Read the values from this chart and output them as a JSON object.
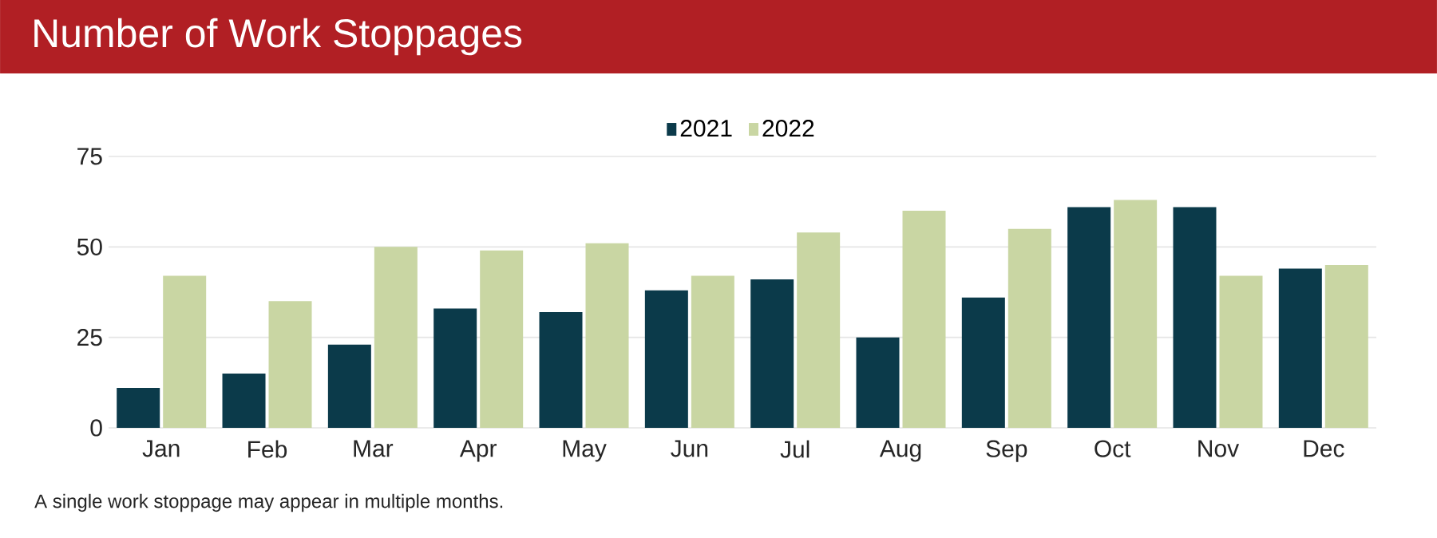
{
  "chart_data": {
    "type": "bar",
    "title": "Number of Work Stoppages",
    "categories": [
      "Jan",
      "Feb",
      "Mar",
      "Apr",
      "May",
      "Jun",
      "Jul",
      "Aug",
      "Sep",
      "Oct",
      "Nov",
      "Dec"
    ],
    "series": [
      {
        "name": "2021",
        "color": "#0b3a4a",
        "values": [
          11,
          15,
          23,
          33,
          32,
          38,
          41,
          25,
          36,
          61,
          61,
          44
        ]
      },
      {
        "name": "2022",
        "color": "#c9d6a3",
        "values": [
          42,
          35,
          50,
          49,
          51,
          42,
          54,
          60,
          55,
          63,
          42,
          45
        ]
      }
    ],
    "ylim": [
      0,
      75
    ],
    "yticks": [
      0,
      25,
      50,
      75
    ],
    "grid": "y",
    "legend": "top",
    "annotations": [
      "A single work stoppage may appear in multiple months."
    ]
  }
}
